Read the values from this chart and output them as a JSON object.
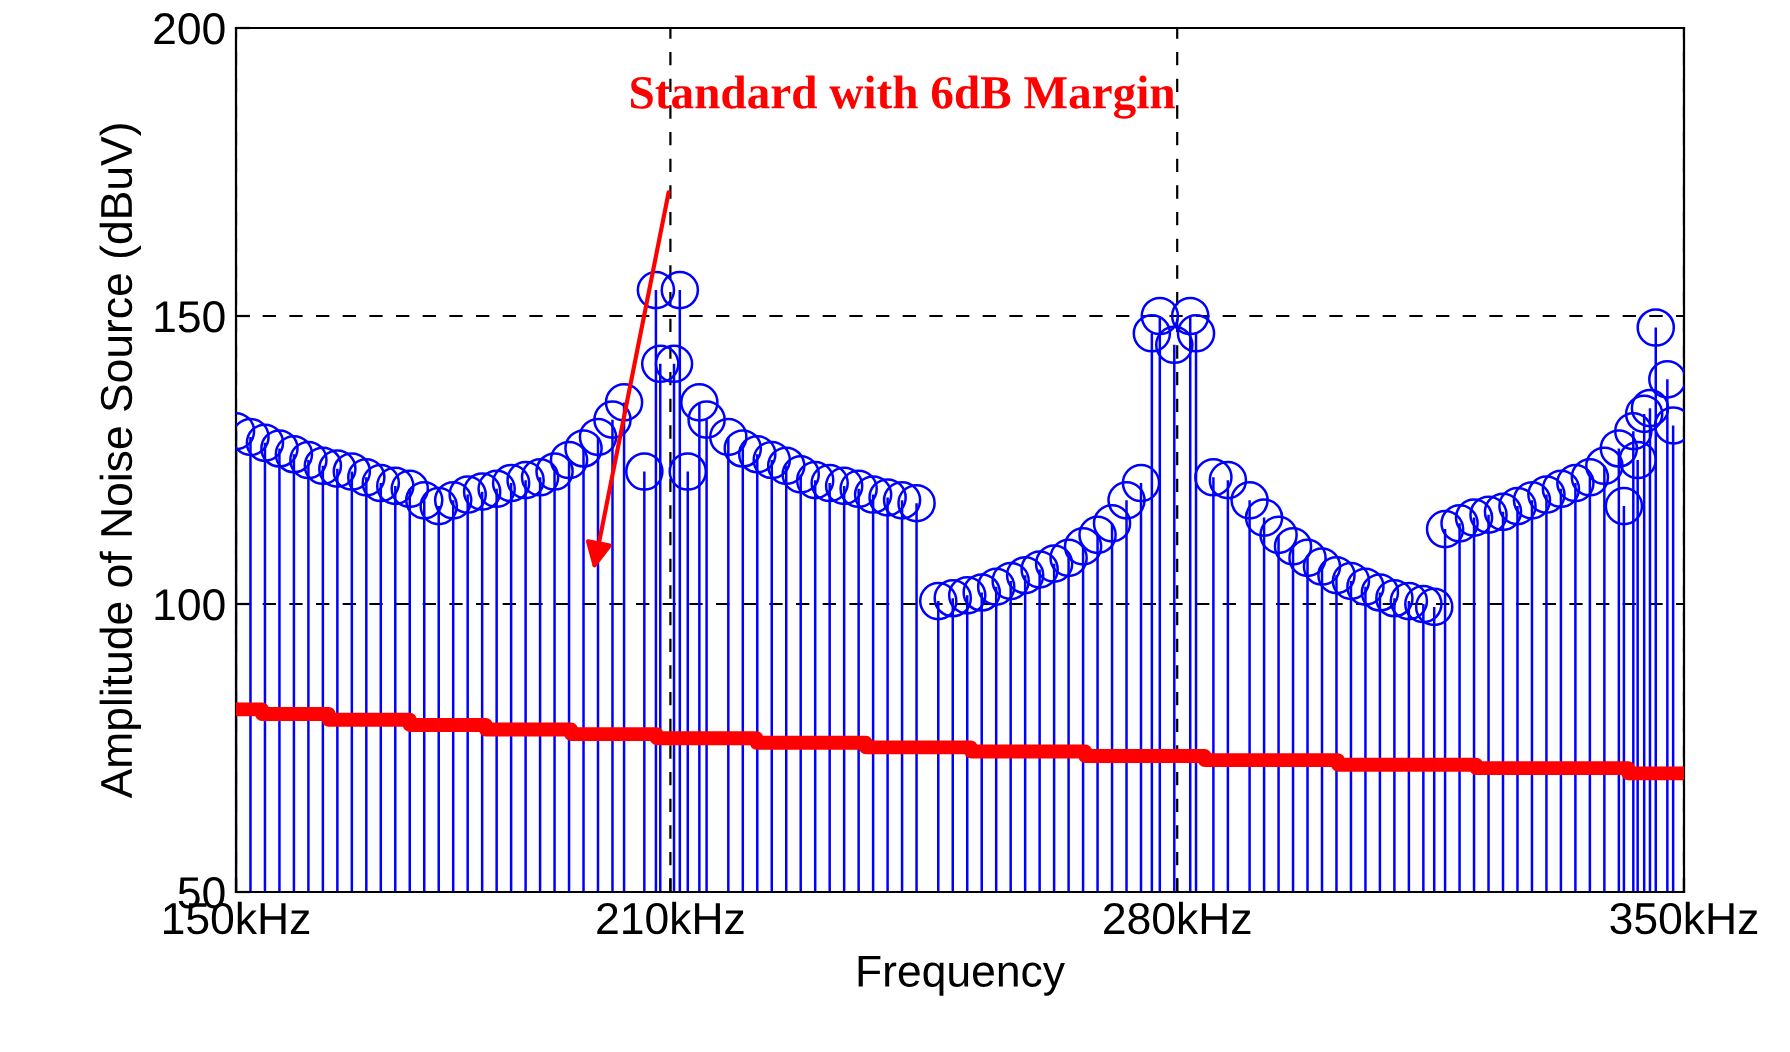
{
  "chart_data": {
    "type": "lollipop",
    "xlabel": "Frequency",
    "ylabel": "Amplitude of Noise Source (dBuV)",
    "xlim": [
      150,
      350
    ],
    "ylim": [
      50,
      200
    ],
    "xticks": [
      {
        "value": 150,
        "label": "150kHz"
      },
      {
        "value": 210,
        "label": "210kHz"
      },
      {
        "value": 280,
        "label": "280kHz"
      },
      {
        "value": 350,
        "label": "350kHz"
      }
    ],
    "yticks": [
      50,
      100,
      150,
      200
    ],
    "grid": true,
    "legend": false,
    "annotations": [
      "Standard with 6dB Margin"
    ],
    "series": [
      {
        "marker": "circle",
        "color": "#0000ff",
        "x": [
          150,
          152,
          154,
          156,
          158,
          160,
          162,
          164,
          166,
          168,
          170,
          172,
          174,
          176,
          178,
          180,
          182,
          184,
          186,
          188,
          190,
          192,
          194,
          196,
          198,
          200,
          202,
          203.6,
          206.4,
          208,
          208.6,
          210.5,
          211.3,
          212.4,
          214,
          215,
          218,
          220,
          222,
          224,
          226,
          228,
          230,
          232,
          234,
          236,
          238,
          240,
          242,
          244,
          247,
          249,
          251,
          253,
          255,
          257,
          259,
          261,
          263,
          265,
          267,
          269,
          271,
          273,
          275,
          276.5,
          277.6,
          279.6,
          281.8,
          282.6,
          285,
          287,
          290,
          292,
          294,
          296,
          298,
          300,
          302,
          304,
          306,
          308,
          310,
          312,
          314,
          315.5,
          317,
          319,
          321,
          323,
          325,
          327,
          329,
          331,
          333,
          335,
          337,
          339,
          341,
          341.7,
          343,
          343.6,
          344.5,
          345.3,
          346.1,
          347.7,
          348.5
        ],
        "values": [
          130,
          129,
          128,
          127,
          126,
          125,
          124,
          123.5,
          123,
          122,
          121,
          120.5,
          120,
          118,
          117,
          118,
          119,
          119.5,
          120,
          121,
          121.5,
          122,
          123,
          125,
          127,
          129,
          132,
          135,
          123,
          154.5,
          141.7,
          141.7,
          154.5,
          123,
          135,
          132,
          129,
          127,
          126,
          125,
          124,
          122.5,
          121.5,
          121,
          120.5,
          120,
          119,
          118.5,
          118,
          117.5,
          100.5,
          101,
          101.5,
          102,
          103,
          104,
          105,
          106,
          107,
          108,
          110,
          112,
          114,
          118,
          121,
          147,
          150,
          145,
          150,
          147,
          122,
          121.5,
          118,
          115,
          112,
          110,
          108,
          106.5,
          105,
          104,
          103,
          102,
          101,
          100.5,
          100,
          99.5,
          113,
          114,
          115,
          115.5,
          116,
          117,
          118,
          119,
          120,
          121,
          122,
          124,
          127,
          117,
          130,
          125,
          133,
          134,
          148,
          139,
          131
        ]
      },
      {
        "type": "step",
        "color": "#ff0000",
        "x": [
          150,
          153.6,
          162.8,
          174,
          184.5,
          196.3,
          208.1,
          221.9,
          237,
          251.5,
          267.3,
          283.8,
          302.2,
          321.3,
          342.3,
          350
        ],
        "values": [
          81.7,
          80.9,
          79.9,
          79.0,
          78.2,
          77.4,
          76.7,
          75.9,
          75.1,
          74.4,
          73.6,
          72.9,
          72.1,
          71.5,
          70.6,
          70.6
        ]
      }
    ]
  }
}
